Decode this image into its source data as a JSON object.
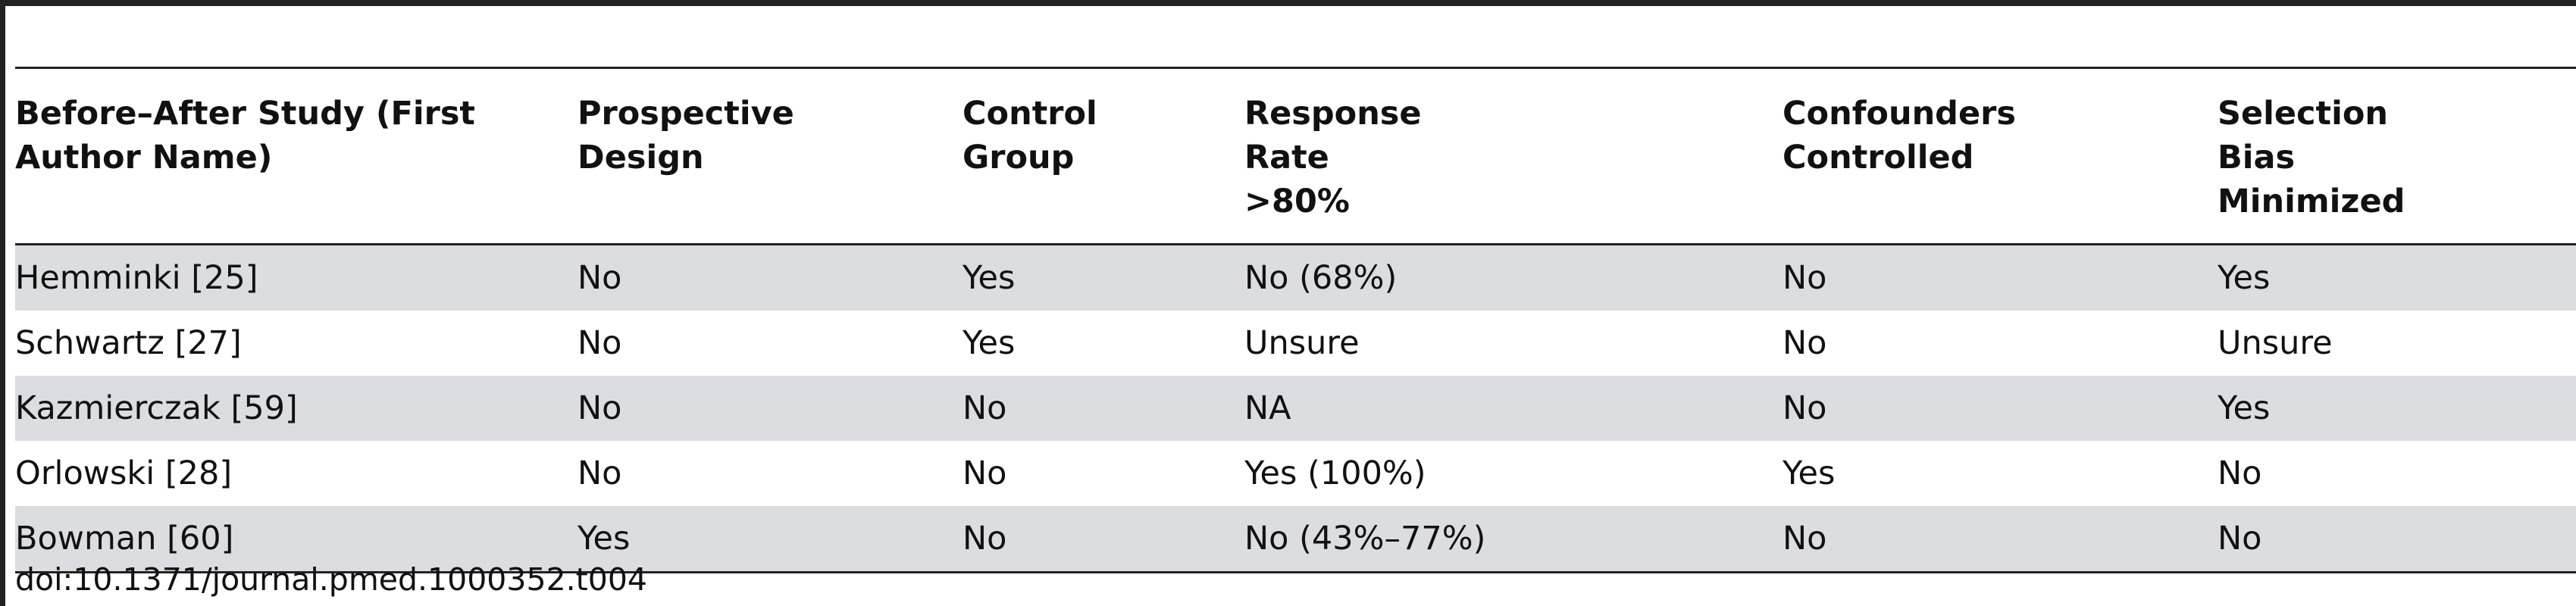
{
  "table": {
    "columns": [
      "Before–After Study (First Author Name)",
      "Prospective Design",
      "Control Group",
      "Response Rate >80%",
      "Confounders Controlled",
      "Selection Bias Minimized"
    ],
    "rows": [
      [
        "Hemminki [25]",
        "No",
        "Yes",
        "No (68%)",
        "No",
        "Yes"
      ],
      [
        "Schwartz [27]",
        "No",
        "Yes",
        "Unsure",
        "No",
        "Unsure"
      ],
      [
        "Kazmierczak [59]",
        "No",
        "No",
        "NA",
        "No",
        "Yes"
      ],
      [
        "Orlowski [28]",
        "No",
        "No",
        "Yes (100%)",
        "Yes",
        "No"
      ],
      [
        "Bowman [60]",
        "Yes",
        "No",
        "No (43%–77%)",
        "No",
        "No"
      ]
    ]
  },
  "footer": {
    "doi": "doi:10.1371/journal.pmed.1000352.t004"
  }
}
